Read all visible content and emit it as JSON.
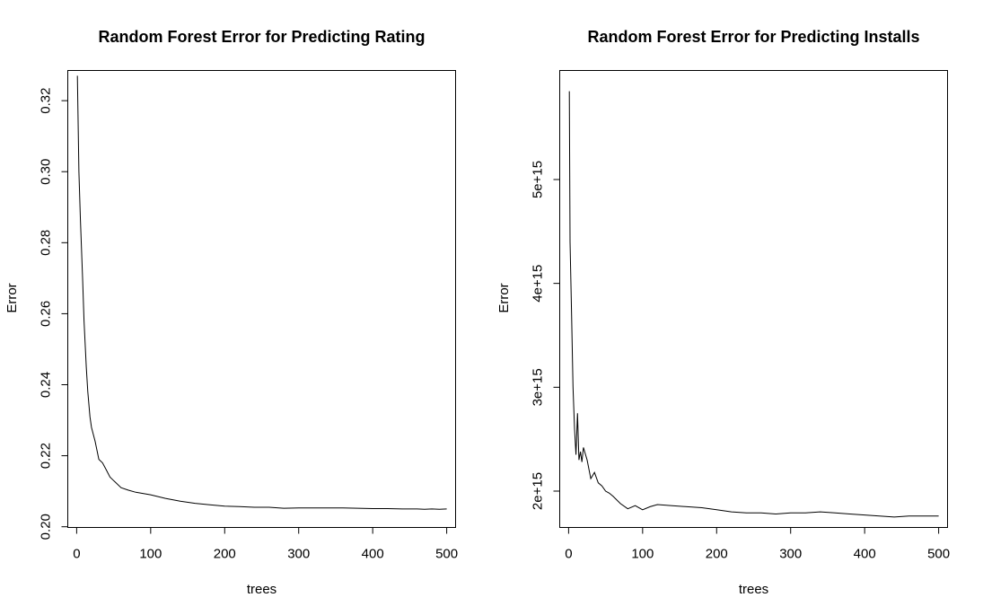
{
  "chart_data": [
    {
      "type": "line",
      "title": "Random Forest Error for Predicting Rating",
      "xlabel": "trees",
      "ylabel": "Error",
      "xlim": [
        -12,
        512
      ],
      "ylim": [
        0.1998,
        0.3285
      ],
      "xticks": [
        0,
        100,
        200,
        300,
        400,
        500
      ],
      "xtick_labels": [
        "0",
        "100",
        "200",
        "300",
        "400",
        "500"
      ],
      "yticks": [
        0.2,
        0.22,
        0.24,
        0.26,
        0.28,
        0.3,
        0.32
      ],
      "ytick_labels": [
        "0.20",
        "0.22",
        "0.24",
        "0.26",
        "0.28",
        "0.30",
        "0.32"
      ],
      "grid": false,
      "series": [
        {
          "x": [
            1,
            3,
            5,
            8,
            10,
            13,
            15,
            18,
            20,
            25,
            30,
            35,
            40,
            45,
            50,
            60,
            70,
            80,
            100,
            120,
            140,
            160,
            180,
            200,
            220,
            240,
            260,
            280,
            300,
            320,
            340,
            360,
            380,
            400,
            420,
            440,
            460,
            470,
            480,
            490,
            500
          ],
          "y": [
            0.327,
            0.3,
            0.287,
            0.27,
            0.258,
            0.245,
            0.238,
            0.231,
            0.228,
            0.224,
            0.219,
            0.218,
            0.216,
            0.214,
            0.213,
            0.211,
            0.2103,
            0.2097,
            0.209,
            0.208,
            0.2072,
            0.2066,
            0.2062,
            0.2058,
            0.2057,
            0.2055,
            0.2055,
            0.2052,
            0.2053,
            0.2053,
            0.2053,
            0.2053,
            0.2052,
            0.2051,
            0.2051,
            0.205,
            0.205,
            0.2049,
            0.205,
            0.2049,
            0.205
          ]
        }
      ]
    },
    {
      "type": "line",
      "title": "Random Forest Error for Predicting Installs",
      "xlabel": "trees",
      "ylabel": "Error",
      "xlim": [
        -12,
        512
      ],
      "ylim": [
        1650000000000000.0,
        6050000000000000.0
      ],
      "xticks": [
        0,
        100,
        200,
        300,
        400,
        500
      ],
      "xtick_labels": [
        "0",
        "100",
        "200",
        "300",
        "400",
        "500"
      ],
      "yticks": [
        2000000000000000.0,
        3000000000000000.0,
        4000000000000000.0,
        5000000000000000.0
      ],
      "ytick_labels": [
        "2e+15",
        "3e+15",
        "4e+15",
        "5e+15"
      ],
      "grid": false,
      "series": [
        {
          "x": [
            1,
            2,
            4,
            6,
            8,
            10,
            12,
            14,
            16,
            18,
            20,
            25,
            30,
            35,
            40,
            45,
            50,
            55,
            60,
            70,
            80,
            90,
            100,
            110,
            120,
            140,
            160,
            180,
            200,
            220,
            240,
            260,
            280,
            300,
            320,
            340,
            360,
            380,
            400,
            420,
            440,
            460,
            480,
            500
          ],
          "y": [
            5850000000000000.0,
            4400000000000000.0,
            3700000000000000.0,
            3000000000000000.0,
            2600000000000000.0,
            2350000000000000.0,
            2750000000000000.0,
            2300000000000000.0,
            2380000000000000.0,
            2280000000000000.0,
            2420000000000000.0,
            2300000000000000.0,
            2120000000000000.0,
            2180000000000000.0,
            2080000000000000.0,
            2050000000000000.0,
            2000000000000000.0,
            1980000000000000.0,
            1950000000000000.0,
            1880000000000000.0,
            1830000000000000.0,
            1860000000000000.0,
            1820000000000000.0,
            1850000000000000.0,
            1870000000000000.0,
            1860000000000000.0,
            1850000000000000.0,
            1840000000000000.0,
            1820000000000000.0,
            1800000000000000.0,
            1790000000000000.0,
            1790000000000000.0,
            1780000000000000.0,
            1790000000000000.0,
            1790000000000000.0,
            1800000000000000.0,
            1790000000000000.0,
            1780000000000000.0,
            1770000000000000.0,
            1760000000000000.0,
            1750000000000000.0,
            1760000000000000.0,
            1760000000000000.0,
            1760000000000000.0
          ]
        }
      ]
    }
  ]
}
